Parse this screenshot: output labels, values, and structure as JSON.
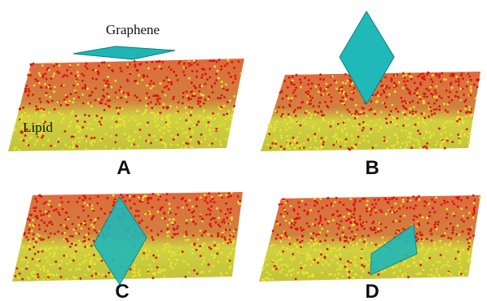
{
  "annotations": {
    "graphene": "Graphene",
    "lipid": "Lipid"
  },
  "panels": [
    {
      "label": "A"
    },
    {
      "label": "B"
    },
    {
      "label": "C"
    },
    {
      "label": "D"
    }
  ]
}
